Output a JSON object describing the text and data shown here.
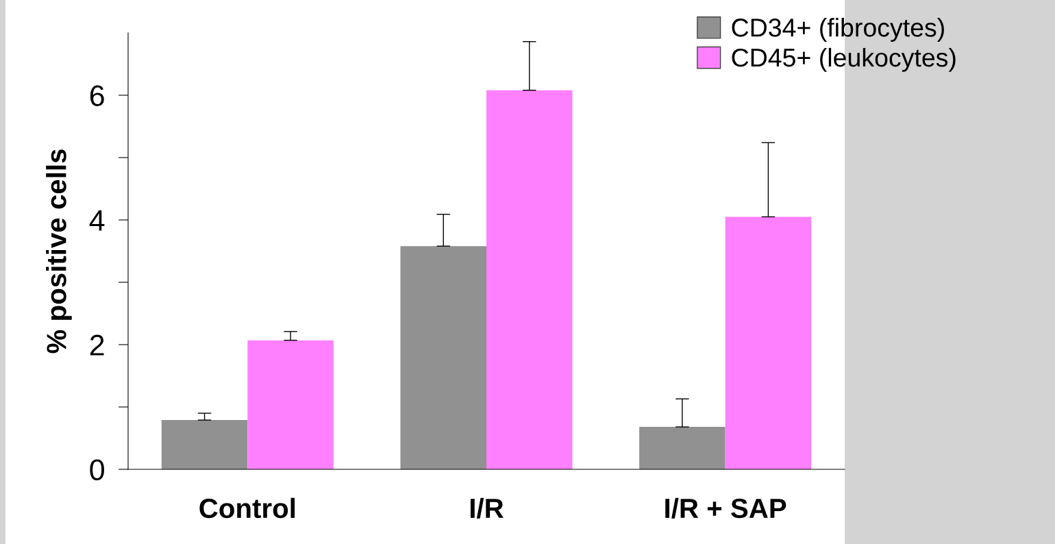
{
  "chart_data": {
    "type": "bar",
    "ylabel": "% positive cells",
    "categories": [
      "Control",
      "I/R",
      "I/R + SAP"
    ],
    "series": [
      {
        "name": "CD34+ (fibrocytes)",
        "color": "#919191",
        "values": [
          0.79,
          3.58,
          0.68
        ],
        "errors": [
          [
            0.79,
            0.9
          ],
          [
            3.58,
            4.09
          ],
          [
            0.68,
            1.13
          ]
        ]
      },
      {
        "name": "CD45+ (leukocytes)",
        "color": "#ff80ff",
        "values": [
          2.07,
          6.08,
          4.05
        ],
        "errors": [
          [
            2.07,
            2.21
          ],
          [
            6.08,
            6.86
          ],
          [
            4.05,
            5.24
          ]
        ]
      }
    ],
    "ylim": [
      0,
      7
    ],
    "yticks": [
      0,
      {
        "value": 1,
        "label": null
      },
      2,
      {
        "value": 3,
        "label": null
      },
      4,
      {
        "value": 5,
        "label": null
      },
      6
    ],
    "grid": false,
    "legend": "top right"
  }
}
